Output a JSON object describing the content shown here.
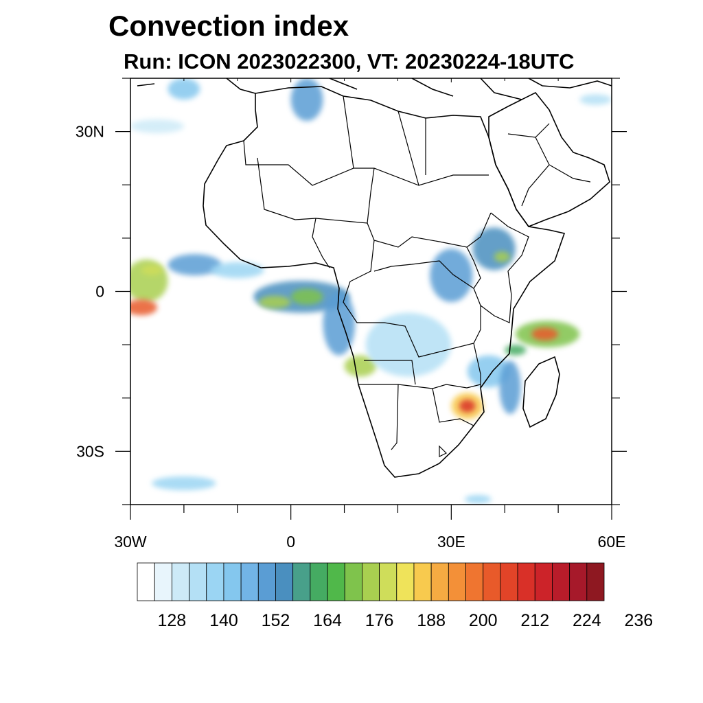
{
  "title": "Convection index",
  "subtitle": "Run: ICON 2023022300,  VT: 20230224-18UTC",
  "map": {
    "lon_range": [
      -30,
      60
    ],
    "lat_range": [
      -40,
      40
    ],
    "x_ticks": [
      {
        "lon": -30,
        "label": "30W"
      },
      {
        "lon": 0,
        "label": "0"
      },
      {
        "lon": 30,
        "label": "30E"
      },
      {
        "lon": 60,
        "label": "60E"
      }
    ],
    "y_ticks": [
      {
        "lat": 30,
        "label": "30N"
      },
      {
        "lat": 0,
        "label": "0"
      },
      {
        "lat": -30,
        "label": "30S"
      }
    ],
    "minor_lon_step": 10,
    "minor_lat_step": 10
  },
  "colorbar": {
    "colors": [
      "#ffffff",
      "#e8f5fc",
      "#cdeaf7",
      "#b4e0f5",
      "#9bd5f3",
      "#84c7ee",
      "#72b4e6",
      "#5a9dd4",
      "#4a8fbf",
      "#48a08a",
      "#45ab62",
      "#50b84a",
      "#7fc34c",
      "#a9cf50",
      "#cfdd5a",
      "#efe35a",
      "#f8ca4e",
      "#f6ab42",
      "#f39038",
      "#ef7530",
      "#e85a2a",
      "#e24428",
      "#d93028",
      "#cc2329",
      "#b91c2a",
      "#a6192a",
      "#8e1821"
    ],
    "labels": [
      "128",
      "140",
      "152",
      "164",
      "176",
      "188",
      "200",
      "212",
      "224",
      "236"
    ],
    "label_box_index": [
      2,
      5,
      8,
      11,
      14,
      17,
      20,
      23,
      26,
      29
    ]
  },
  "blobs": [
    {
      "lon": -27,
      "lat": 2,
      "rx": 4,
      "ry": 4,
      "level": 0.5
    },
    {
      "lon": -28,
      "lat": -3,
      "rx": 3,
      "ry": 1.5,
      "level": 0.75
    },
    {
      "lon": -26,
      "lat": 4,
      "rx": 2,
      "ry": 1,
      "level": 0.55
    },
    {
      "lon": -18,
      "lat": 5,
      "rx": 5,
      "ry": 2,
      "level": 0.25
    },
    {
      "lon": -10,
      "lat": 4,
      "rx": 5,
      "ry": 1.5,
      "level": 0.15
    },
    {
      "lon": 2,
      "lat": -1,
      "rx": 9,
      "ry": 3,
      "level": 0.3
    },
    {
      "lon": -3,
      "lat": -2,
      "rx": 3,
      "ry": 1.2,
      "level": 0.5
    },
    {
      "lon": 3,
      "lat": -1,
      "rx": 3,
      "ry": 1.5,
      "level": 0.45
    },
    {
      "lon": 9,
      "lat": -6,
      "rx": 3,
      "ry": 6,
      "level": 0.25
    },
    {
      "lon": 13,
      "lat": -14,
      "rx": 3,
      "ry": 2,
      "level": 0.5
    },
    {
      "lon": 22,
      "lat": -10,
      "rx": 8,
      "ry": 6,
      "level": 0.12
    },
    {
      "lon": 30,
      "lat": 3,
      "rx": 4,
      "ry": 5,
      "level": 0.25
    },
    {
      "lon": 38,
      "lat": 8,
      "rx": 4,
      "ry": 4,
      "level": 0.3
    },
    {
      "lon": 39.5,
      "lat": 6.5,
      "rx": 1.5,
      "ry": 1,
      "level": 0.5
    },
    {
      "lon": 48,
      "lat": -8,
      "rx": 6,
      "ry": 2.5,
      "level": 0.45
    },
    {
      "lon": 47.5,
      "lat": -8,
      "rx": 2.5,
      "ry": 1.2,
      "level": 0.75
    },
    {
      "lon": 42,
      "lat": -11,
      "rx": 2,
      "ry": 1,
      "level": 0.4
    },
    {
      "lon": 37,
      "lat": -15,
      "rx": 4,
      "ry": 3,
      "level": 0.2
    },
    {
      "lon": 33,
      "lat": -21.5,
      "rx": 3,
      "ry": 2.5,
      "level": 0.6
    },
    {
      "lon": 33,
      "lat": -21.5,
      "rx": 1.5,
      "ry": 1.2,
      "level": 0.85
    },
    {
      "lon": 41,
      "lat": -18,
      "rx": 2,
      "ry": 5,
      "level": 0.25
    },
    {
      "lon": 3,
      "lat": 36,
      "rx": 3,
      "ry": 4,
      "level": 0.25
    },
    {
      "lon": -20,
      "lat": 38,
      "rx": 3,
      "ry": 2,
      "level": 0.2
    },
    {
      "lon": -25,
      "lat": 31,
      "rx": 5,
      "ry": 1.3,
      "level": 0.08
    },
    {
      "lon": -20,
      "lat": -36,
      "rx": 6,
      "ry": 1.3,
      "level": 0.15
    },
    {
      "lon": 57,
      "lat": 36,
      "rx": 3,
      "ry": 1,
      "level": 0.12
    },
    {
      "lon": 35,
      "lat": -39,
      "rx": 2.5,
      "ry": 0.8,
      "level": 0.15
    }
  ]
}
